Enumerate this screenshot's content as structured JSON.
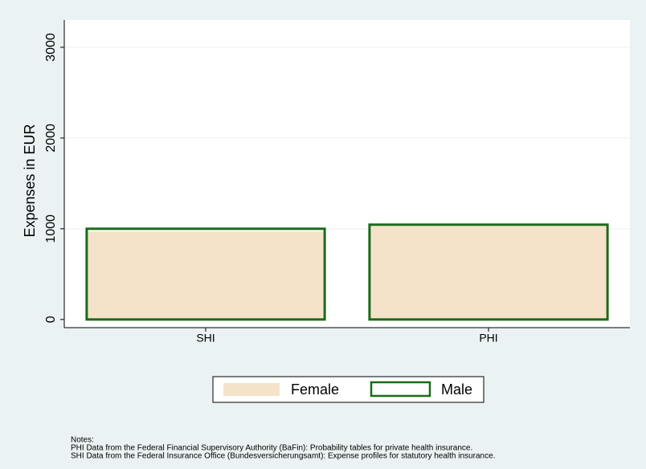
{
  "chart_data": {
    "type": "bar",
    "categories": [
      "SHI",
      "PHI"
    ],
    "series": [
      {
        "name": "Female",
        "color": "#f5e3c9",
        "values": [
          970,
          1030
        ]
      },
      {
        "name": "Male",
        "color": "#1a6b1a",
        "values": [
          1000,
          1045
        ]
      }
    ],
    "ylabel": "Expenses in EUR",
    "ylim": [
      -90,
      3300
    ],
    "yticks": [
      0,
      1000,
      2000,
      3000
    ],
    "grid": true,
    "notes": [
      "Notes:",
      "PHI Data from the Federal Financial Supervisory Authority (BaFin): Probability tables for private health insurance.",
      "SHI Data from the Federal Insurance Office (Bundesversicherungsamt): Expense profiles for statutory health insurance."
    ]
  }
}
